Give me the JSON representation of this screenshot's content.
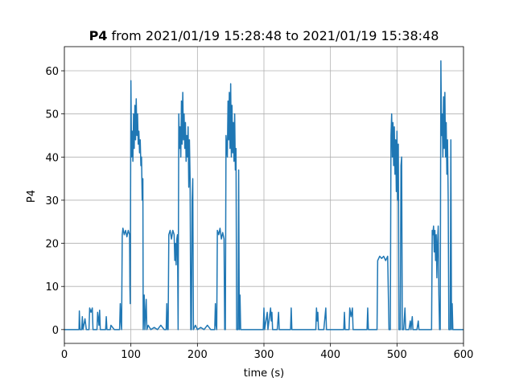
{
  "chart_data": {
    "type": "line",
    "title_parts": [
      "P4",
      "from 2021/01/19 15:28:48 to 2021/01/19 15:38:48"
    ],
    "xlabel": "time (s)",
    "ylabel": "P4",
    "color": "#1f77b4",
    "grid": true,
    "xlim": [
      0,
      600
    ],
    "xticks": [
      0,
      100,
      200,
      300,
      400,
      500,
      600
    ],
    "ylim": [
      -3.2,
      65.6
    ],
    "yticks": [
      0,
      10,
      20,
      30,
      40,
      50,
      60
    ],
    "x": [
      0,
      22,
      22.5,
      23.5,
      26,
      27,
      28,
      31,
      33,
      37,
      38,
      40,
      42,
      43,
      49,
      50,
      52,
      53,
      54,
      62,
      63,
      64,
      69,
      70,
      75,
      80,
      83,
      84,
      85,
      86,
      87,
      88,
      90,
      92,
      94,
      96,
      98,
      98.5,
      99,
      100,
      101,
      102,
      103,
      104,
      105,
      106,
      107,
      108,
      109,
      110,
      111,
      112,
      113,
      114,
      115,
      116,
      117,
      118,
      118.5,
      120,
      121,
      123,
      124,
      126,
      130,
      135,
      140,
      145,
      150,
      153,
      154,
      155,
      156,
      157,
      159,
      161,
      163,
      165,
      166,
      167,
      168,
      169,
      170,
      171,
      172,
      173,
      174,
      175,
      176,
      177,
      178,
      179,
      180,
      181,
      182,
      183,
      184,
      185,
      186,
      187,
      188,
      189,
      190,
      191,
      192,
      193,
      194,
      197,
      200,
      205,
      210,
      215,
      220,
      226,
      227,
      228,
      229,
      230,
      232,
      234,
      236,
      238,
      240,
      241,
      242,
      243,
      245,
      246,
      247,
      248,
      249,
      250,
      251,
      252,
      253,
      254,
      255,
      256,
      257,
      258,
      259,
      261,
      262,
      263,
      264,
      265,
      268,
      275,
      290,
      299,
      300,
      301,
      305,
      306,
      310,
      311,
      312,
      313,
      320,
      322,
      323,
      330,
      340,
      341,
      342,
      350,
      355,
      370,
      378,
      379,
      380,
      381,
      382,
      390,
      393,
      394,
      400,
      415,
      420,
      421,
      422,
      428,
      429,
      431,
      433,
      434,
      440,
      450,
      455,
      456,
      457,
      470,
      471,
      474,
      477,
      480,
      483,
      486,
      488,
      490,
      491,
      492,
      493,
      494,
      495,
      496,
      497,
      498,
      499,
      500,
      501,
      502,
      503,
      505,
      506,
      507,
      508,
      510,
      512,
      513,
      518,
      520,
      521,
      523,
      524,
      530,
      532,
      533,
      540,
      545,
      550,
      552,
      553,
      554,
      555,
      556,
      557,
      558,
      559,
      560,
      561,
      562,
      563,
      564,
      565,
      566,
      567,
      568,
      569,
      570,
      571,
      572,
      573,
      574,
      575,
      576,
      577,
      578,
      580,
      581,
      582,
      583,
      584,
      600
    ],
    "values": [
      0,
      0,
      4.3,
      0,
      0,
      3,
      0,
      2.5,
      0,
      0,
      5,
      4,
      5,
      0,
      0,
      4,
      1,
      4.5,
      0,
      0,
      3,
      0,
      0,
      1,
      0,
      0,
      0,
      6,
      2,
      0,
      22,
      23.5,
      22,
      23,
      21.5,
      23,
      22,
      10,
      6,
      57.7,
      40,
      46,
      39,
      50,
      42,
      52,
      44,
      53.5,
      45,
      50,
      43,
      46,
      41,
      44,
      38,
      40,
      30,
      35,
      0,
      8,
      0,
      7,
      0,
      1,
      0,
      0.5,
      0,
      1,
      0,
      0,
      6,
      0,
      0,
      22,
      23,
      21,
      23,
      22,
      16,
      20,
      15,
      21,
      22,
      0,
      50,
      42,
      47,
      40,
      53,
      43,
      55,
      44,
      50,
      42,
      48,
      39,
      45,
      40,
      47,
      33,
      44,
      35,
      0,
      0,
      30,
      35,
      0,
      1,
      0,
      0.5,
      0,
      1,
      0,
      0,
      6,
      1,
      0,
      23,
      22,
      23.5,
      21,
      22.5,
      21,
      0,
      0,
      45,
      40,
      53,
      44,
      55,
      42,
      57,
      40,
      52,
      41,
      48,
      39,
      50,
      37,
      42,
      0,
      0,
      37,
      0,
      8,
      0,
      0,
      0,
      0,
      0,
      5,
      0,
      4,
      0,
      5,
      2,
      4,
      0,
      0,
      4,
      0,
      0,
      0,
      5,
      0,
      0,
      0,
      0,
      0,
      5,
      2,
      4,
      0,
      0,
      5,
      0,
      0,
      0,
      0,
      4,
      0,
      0,
      5,
      3,
      5,
      0,
      0,
      0,
      0,
      5,
      0,
      0,
      16,
      17,
      16.5,
      17,
      16,
      17,
      0,
      0,
      45,
      50,
      40,
      48,
      38,
      47,
      36,
      44,
      32,
      46,
      30,
      43,
      0,
      0,
      38,
      40,
      0,
      0,
      5,
      0,
      0,
      2,
      0,
      3,
      0,
      0,
      2,
      0,
      0,
      0,
      0,
      0,
      23,
      22,
      24,
      18,
      23,
      16,
      22,
      12,
      20,
      24,
      8,
      0,
      0,
      62.3,
      45,
      50,
      40,
      54,
      42,
      55,
      40,
      48,
      36,
      44,
      30,
      0,
      0,
      44,
      0,
      6,
      0,
      0
    ]
  }
}
